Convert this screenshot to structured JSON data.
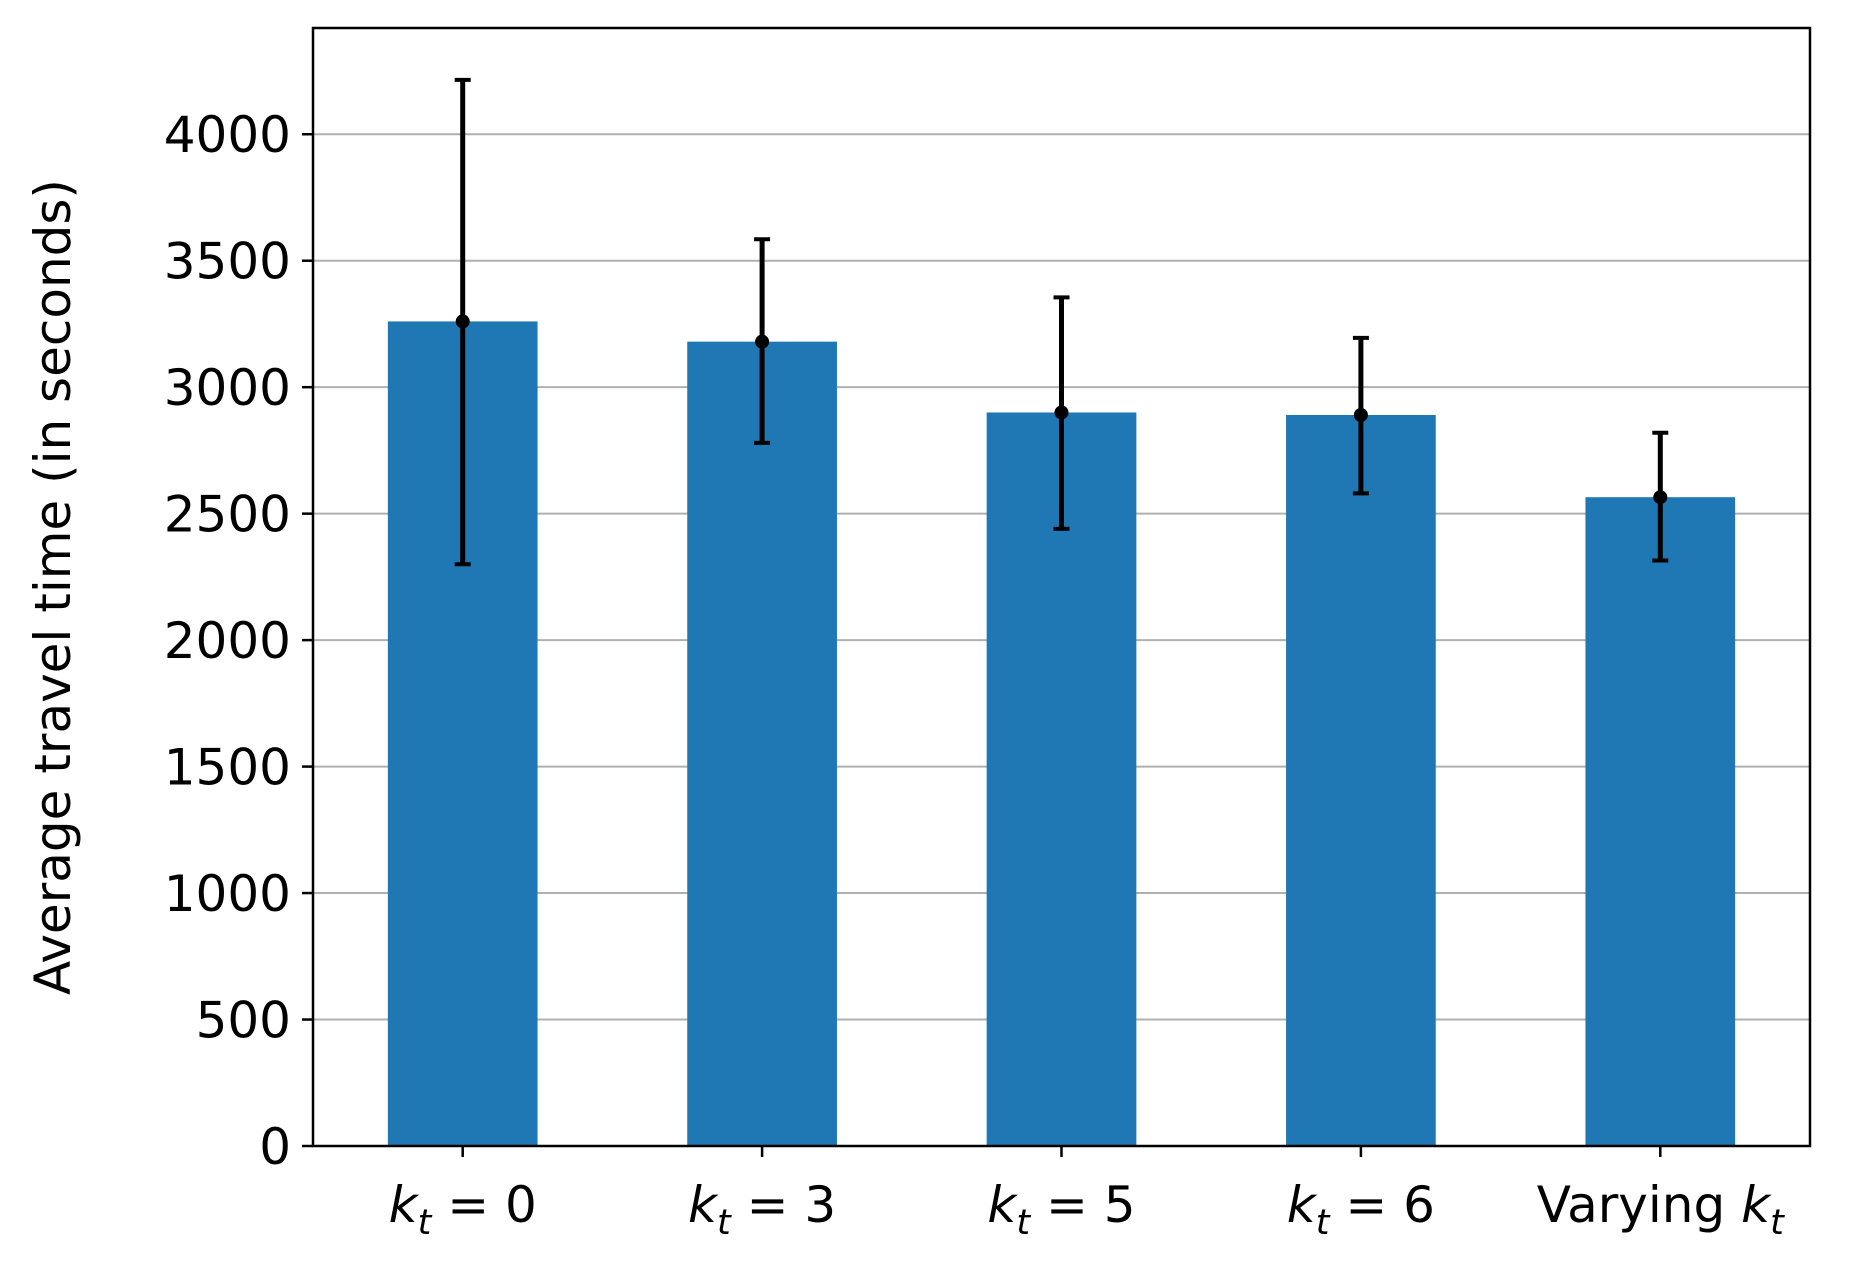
{
  "chart_data": {
    "type": "bar",
    "categories": [
      {
        "text": "",
        "symbol": "k",
        "sub": "t",
        "suffix": " = 0"
      },
      {
        "text": "",
        "symbol": "k",
        "sub": "t",
        "suffix": " = 3"
      },
      {
        "text": "",
        "symbol": "k",
        "sub": "t",
        "suffix": " = 5"
      },
      {
        "text": "",
        "symbol": "k",
        "sub": "t",
        "suffix": " = 6"
      },
      {
        "text": "Varying ",
        "symbol": "k",
        "sub": "t",
        "suffix": ""
      }
    ],
    "values": [
      3260,
      3180,
      2900,
      2890,
      2565
    ],
    "errors": [
      [
        2300,
        4215
      ],
      [
        2780,
        3585
      ],
      [
        2440,
        3355
      ],
      [
        2580,
        3195
      ],
      [
        2315,
        2820
      ]
    ],
    "ylabel": "Average travel time (in seconds)",
    "xlabel": "",
    "title": "",
    "ylim": [
      0,
      4420
    ],
    "yticks": [
      0,
      500,
      1000,
      1500,
      2000,
      2500,
      3000,
      3500,
      4000
    ],
    "grid": "horizontal",
    "legend": "none",
    "colors": {
      "bar": "#1f77b4",
      "error_bar": "#000000",
      "grid": "#b0b0b0",
      "axis": "#000000"
    }
  }
}
